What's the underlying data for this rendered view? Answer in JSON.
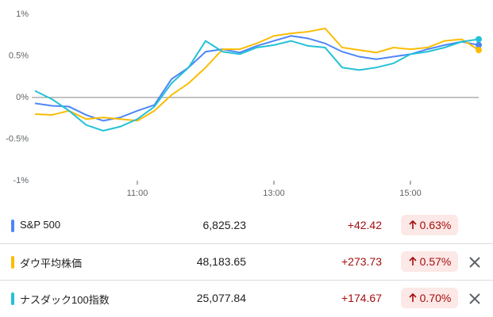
{
  "chart_data": {
    "type": "line",
    "x": [
      9.5,
      9.75,
      10,
      10.25,
      10.5,
      10.75,
      11,
      11.25,
      11.5,
      11.75,
      12,
      12.25,
      12.5,
      12.75,
      13,
      13.25,
      13.5,
      13.75,
      14,
      14.25,
      14.5,
      14.75,
      15,
      15.25,
      15.5,
      15.75,
      16
    ],
    "xlim": [
      9.5,
      16
    ],
    "xticks": [
      {
        "value": 11,
        "label": "11:00"
      },
      {
        "value": 13,
        "label": "13:00"
      },
      {
        "value": 15,
        "label": "15:00"
      }
    ],
    "ylim": [
      -1,
      1
    ],
    "yticks": [
      {
        "value": 1,
        "label": "1%"
      },
      {
        "value": 0.5,
        "label": "0.5%"
      },
      {
        "value": 0,
        "label": "0%"
      },
      {
        "value": -0.5,
        "label": "-0.5%"
      },
      {
        "value": -1,
        "label": "-1%"
      }
    ],
    "series": [
      {
        "name": "S&P 500",
        "color": "#4f86f7",
        "values": [
          -0.07,
          -0.1,
          -0.11,
          -0.21,
          -0.28,
          -0.24,
          -0.16,
          -0.09,
          0.22,
          0.36,
          0.55,
          0.58,
          0.54,
          0.62,
          0.68,
          0.74,
          0.71,
          0.65,
          0.55,
          0.49,
          0.46,
          0.49,
          0.52,
          0.58,
          0.63,
          0.67,
          0.63
        ]
      },
      {
        "name": "ダウ平均株価",
        "color": "#fbbc04",
        "values": [
          -0.2,
          -0.21,
          -0.16,
          -0.26,
          -0.24,
          -0.26,
          -0.28,
          -0.16,
          0.03,
          0.17,
          0.36,
          0.58,
          0.58,
          0.65,
          0.74,
          0.77,
          0.79,
          0.83,
          0.6,
          0.57,
          0.54,
          0.6,
          0.58,
          0.6,
          0.68,
          0.7,
          0.57
        ]
      },
      {
        "name": "ナスダック100指数",
        "color": "#24c1d6",
        "values": [
          0.08,
          -0.02,
          -0.16,
          -0.33,
          -0.4,
          -0.35,
          -0.26,
          -0.11,
          0.17,
          0.36,
          0.68,
          0.55,
          0.52,
          0.6,
          0.63,
          0.68,
          0.62,
          0.6,
          0.36,
          0.33,
          0.36,
          0.41,
          0.52,
          0.55,
          0.6,
          0.67,
          0.7
        ]
      }
    ]
  },
  "table": {
    "rows": [
      {
        "price": "6,825.23",
        "change": "+42.42",
        "percent": "0.63%"
      },
      {
        "price": "48,183.65",
        "change": "+273.73",
        "percent": "0.57%"
      },
      {
        "price": "25,077.84",
        "change": "+174.67",
        "percent": "0.70%"
      }
    ]
  }
}
